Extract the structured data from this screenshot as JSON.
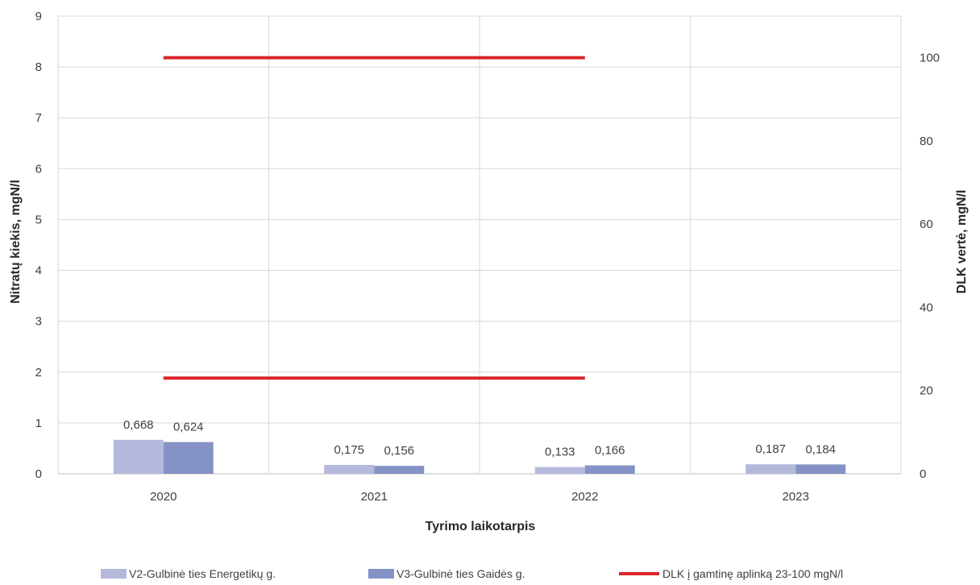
{
  "chart_data": {
    "type": "bar",
    "categories": [
      "2020",
      "2021",
      "2022",
      "2023"
    ],
    "xlabel": "Tyrimo laikotarpis",
    "ylabel": "Nitratų kiekis, mgN/l",
    "y2label": "DLK vertė, mgN/l",
    "ylim": [
      0,
      9
    ],
    "y2lim": [
      0,
      110
    ],
    "yticks": [
      "0",
      "1",
      "2",
      "3",
      "4",
      "5",
      "6",
      "7",
      "8",
      "9"
    ],
    "y2ticks": [
      "0",
      "20",
      "40",
      "60",
      "80",
      "100"
    ],
    "grid": true,
    "legend_position": "bottom",
    "series": [
      {
        "name": "V2-Gulbinė ties Energetikų g.",
        "color": "#b4b9db",
        "values": [
          0.668,
          0.175,
          0.133,
          0.187
        ],
        "labels": [
          "0,668",
          "0,175",
          "0,133",
          "0,187"
        ]
      },
      {
        "name": "V3-Gulbinė ties Gaidės g.",
        "color": "#8592c6",
        "values": [
          0.624,
          0.156,
          0.166,
          0.184
        ],
        "labels": [
          "0,624",
          "0,156",
          "0,166",
          "0,184"
        ]
      }
    ],
    "lines": {
      "name": "DLK į gamtinę aplinką 23-100 mgN/l",
      "color": "#d9252b",
      "axis": "secondary",
      "values": [
        23,
        100
      ],
      "x_range": [
        "2020",
        "2022"
      ]
    }
  }
}
